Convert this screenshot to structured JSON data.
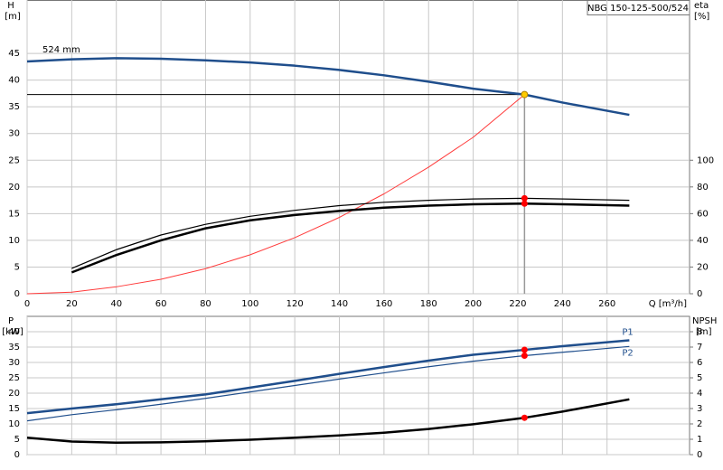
{
  "chart_data": [
    {
      "type": "line",
      "title": "NBG 150-125-500/524",
      "annotation": "524 mm",
      "y_label": "H",
      "y_unit": "[m]",
      "y2_label": "eta",
      "y2_unit": "[%]",
      "x_label": "Q [m³/h]",
      "xlim": [
        0,
        297
      ],
      "xticks": [
        0,
        20,
        40,
        60,
        80,
        100,
        120,
        140,
        160,
        180,
        200,
        220,
        240,
        260
      ],
      "ylim": [
        0,
        55
      ],
      "yticks": [
        0,
        5,
        10,
        15,
        20,
        25,
        30,
        35,
        40,
        45
      ],
      "y2lim": [
        0,
        220
      ],
      "y2ticks": [
        0,
        20,
        40,
        60,
        80,
        100
      ],
      "grid": true,
      "x": [
        0,
        20,
        40,
        60,
        80,
        100,
        120,
        140,
        160,
        180,
        200,
        223,
        240,
        270
      ],
      "series": [
        {
          "color": "#1f4e8c",
          "line_width": 2.5,
          "axis": "y",
          "values": [
            43.5,
            43.9,
            44.1,
            44,
            43.7,
            43.3,
            42.7,
            41.9,
            40.9,
            39.7,
            38.4,
            37.3,
            35.8,
            33.5
          ]
        },
        {
          "color": "#ff3b3b",
          "line_width": 1,
          "axis": "y",
          "values": [
            0,
            0.3,
            1.3,
            2.7,
            4.7,
            7.3,
            10.5,
            14.3,
            18.7,
            23.7,
            29.3,
            37.3,
            null,
            null
          ]
        },
        {
          "color": "#000000",
          "line_width": 1.2,
          "axis": "y2",
          "values": [
            null,
            19,
            33,
            44,
            52,
            58,
            62.5,
            66,
            68.5,
            70,
            71,
            71.5,
            71,
            70
          ]
        },
        {
          "color": "#000000",
          "line_width": 2.5,
          "axis": "y2",
          "values": [
            null,
            16,
            29,
            40,
            49,
            55,
            59,
            62,
            64.5,
            66,
            67,
            67.5,
            67,
            66
          ]
        }
      ],
      "duty_points": [
        {
          "x": 223,
          "y": 37.3,
          "axis": "y",
          "color": "#ffcc00",
          "guides": true
        },
        {
          "x": 223,
          "y": 71.5,
          "axis": "y2",
          "color": "#ff0000"
        },
        {
          "x": 223,
          "y": 67.5,
          "axis": "y2",
          "color": "#ff0000"
        }
      ]
    },
    {
      "type": "line",
      "y_label": "P",
      "y_unit": "[kW]",
      "y2_label": "NPSH",
      "y2_unit": "[m]",
      "xlim": [
        0,
        297
      ],
      "xticks": [
        0,
        20,
        40,
        60,
        80,
        100,
        120,
        140,
        160,
        180,
        200,
        220,
        240,
        260
      ],
      "ylim": [
        0,
        45
      ],
      "yticks": [
        0,
        5,
        10,
        15,
        20,
        25,
        30,
        35,
        40
      ],
      "y2lim": [
        0,
        9
      ],
      "y2ticks": [
        0,
        1,
        2,
        3,
        4,
        5,
        6,
        7,
        8
      ],
      "grid": true,
      "x": [
        0,
        20,
        40,
        60,
        80,
        100,
        120,
        140,
        160,
        180,
        200,
        223,
        240,
        270
      ],
      "series": [
        {
          "name": "P1",
          "color": "#1f4e8c",
          "line_width": 2.5,
          "axis": "y",
          "values": [
            13.5,
            15,
            16.4,
            18,
            19.6,
            21.8,
            24,
            26.3,
            28.5,
            30.6,
            32.5,
            34.1,
            35.3,
            37.2
          ]
        },
        {
          "name": "P2",
          "color": "#1f4e8c",
          "line_width": 1.2,
          "axis": "y",
          "values": [
            11,
            13,
            14.6,
            16.4,
            18.3,
            20.4,
            22.5,
            24.6,
            26.6,
            28.6,
            30.4,
            32.2,
            33.3,
            35.2
          ]
        },
        {
          "color": "#000000",
          "line_width": 2.5,
          "axis": "y2",
          "values": [
            1.1,
            0.85,
            0.78,
            0.8,
            0.87,
            0.97,
            1.1,
            1.25,
            1.43,
            1.67,
            1.98,
            2.4,
            2.8,
            3.6
          ]
        }
      ],
      "duty_points": [
        {
          "x": 223,
          "y": 34.1,
          "axis": "y",
          "color": "#ff0000"
        },
        {
          "x": 223,
          "y": 32.2,
          "axis": "y",
          "color": "#ff0000"
        },
        {
          "x": 223,
          "y": 2.4,
          "axis": "y2",
          "color": "#ff0000"
        }
      ]
    }
  ]
}
